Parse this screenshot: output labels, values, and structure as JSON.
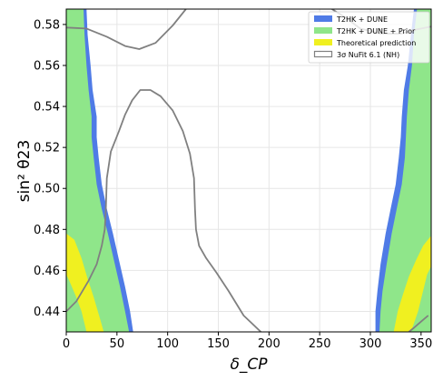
{
  "chart_data": {
    "type": "area",
    "xlabel": "δ_CP",
    "ylabel": "sin² θ23",
    "xlim": [
      0,
      360
    ],
    "ylim": [
      0.43,
      0.5875
    ],
    "xticks": [
      0,
      50,
      100,
      150,
      200,
      250,
      300,
      350
    ],
    "yticks": [
      0.44,
      0.46,
      0.48,
      0.5,
      0.52,
      0.54,
      0.56,
      0.58
    ],
    "grid": true,
    "legend_position": "top-right",
    "legend": [
      {
        "label": "T2HK + DUNE",
        "color": "#4f7be6",
        "kind": "fill"
      },
      {
        "label": "T2HK + DUNE + Prior",
        "color": "#8fe68a",
        "kind": "fill"
      },
      {
        "label": "Theoretical prediction",
        "color": "#f0f020",
        "kind": "fill"
      },
      {
        "label": "3σ NuFit 6.1 (NH)",
        "color": "#808080",
        "kind": "outline"
      }
    ],
    "series": [
      {
        "name": "T2HK + DUNE",
        "color": "#4f7be6",
        "regions": [
          [
            [
              0,
              0.43
            ],
            [
              66,
              0.43
            ],
            [
              63,
              0.44
            ],
            [
              58,
              0.452
            ],
            [
              52,
              0.465
            ],
            [
              46,
              0.478
            ],
            [
              40,
              0.49
            ],
            [
              35,
              0.502
            ],
            [
              32,
              0.515
            ],
            [
              30,
              0.525
            ],
            [
              30,
              0.535
            ],
            [
              26,
              0.548
            ],
            [
              24,
              0.56
            ],
            [
              21,
              0.575
            ],
            [
              20,
              0.5875
            ],
            [
              0,
              0.5875
            ]
          ],
          [
            [
              305,
              0.43
            ],
            [
              360,
              0.43
            ],
            [
              360,
              0.5875
            ],
            [
              343,
              0.5875
            ],
            [
              340,
              0.575
            ],
            [
              337,
              0.56
            ],
            [
              333,
              0.548
            ],
            [
              331,
              0.535
            ],
            [
              330,
              0.525
            ],
            [
              328,
              0.515
            ],
            [
              325,
              0.502
            ],
            [
              320,
              0.49
            ],
            [
              315,
              0.478
            ],
            [
              310,
              0.463
            ],
            [
              307,
              0.45
            ],
            [
              305,
              0.44
            ]
          ]
        ]
      },
      {
        "name": "T2HK + DUNE + Prior",
        "color": "#8fe68a",
        "regions": [
          [
            [
              0,
              0.43
            ],
            [
              62,
              0.43
            ],
            [
              58,
              0.44
            ],
            [
              53,
              0.452
            ],
            [
              47,
              0.465
            ],
            [
              41,
              0.478
            ],
            [
              35,
              0.49
            ],
            [
              30,
              0.502
            ],
            [
              27,
              0.515
            ],
            [
              25,
              0.525
            ],
            [
              25,
              0.535
            ],
            [
              22,
              0.548
            ],
            [
              20,
              0.56
            ],
            [
              18,
              0.575
            ],
            [
              17,
              0.5875
            ],
            [
              0,
              0.5875
            ]
          ],
          [
            [
              309,
              0.43
            ],
            [
              360,
              0.43
            ],
            [
              360,
              0.5875
            ],
            [
              346,
              0.5875
            ],
            [
              343,
              0.575
            ],
            [
              341,
              0.56
            ],
            [
              338,
              0.548
            ],
            [
              336,
              0.535
            ],
            [
              335,
              0.525
            ],
            [
              334,
              0.515
            ],
            [
              331,
              0.502
            ],
            [
              326,
              0.49
            ],
            [
              321,
              0.478
            ],
            [
              316,
              0.463
            ],
            [
              312,
              0.45
            ],
            [
              310,
              0.44
            ]
          ]
        ]
      },
      {
        "name": "Theoretical prediction",
        "color": "#f0f020",
        "regions": [
          [
            [
              0,
              0.478
            ],
            [
              8,
              0.475
            ],
            [
              15,
              0.466
            ],
            [
              21,
              0.456
            ],
            [
              27,
              0.447
            ],
            [
              33,
              0.437
            ],
            [
              37,
              0.43
            ],
            [
              20,
              0.43
            ],
            [
              15,
              0.44
            ],
            [
              9,
              0.448
            ],
            [
              3,
              0.455
            ],
            [
              0,
              0.458
            ]
          ],
          [
            [
              323,
              0.43
            ],
            [
              340,
              0.43
            ],
            [
              347,
              0.44
            ],
            [
              352,
              0.45
            ],
            [
              356,
              0.458
            ],
            [
              360,
              0.462
            ],
            [
              360,
              0.477
            ],
            [
              352,
              0.472
            ],
            [
              345,
              0.465
            ],
            [
              338,
              0.457
            ],
            [
              332,
              0.448
            ],
            [
              327,
              0.44
            ]
          ]
        ]
      },
      {
        "name": "3σ NuFit 6.1 (NH)",
        "color": "#808080",
        "contours": [
          [
            [
              0,
              0.5785
            ],
            [
              20,
              0.578
            ],
            [
              40,
              0.574
            ],
            [
              58,
              0.5695
            ],
            [
              72,
              0.568
            ],
            [
              88,
              0.571
            ],
            [
              105,
              0.5795
            ],
            [
              118,
              0.5875
            ]
          ],
          [
            [
              262,
              0.5875
            ],
            [
              275,
              0.5835
            ],
            [
              290,
              0.578
            ],
            [
              310,
              0.5755
            ],
            [
              330,
              0.5755
            ],
            [
              345,
              0.5775
            ],
            [
              360,
              0.579
            ]
          ],
          [
            [
              0,
              0.44
            ],
            [
              10,
              0.445
            ],
            [
              22,
              0.455
            ],
            [
              30,
              0.463
            ],
            [
              35,
              0.472
            ],
            [
              38,
              0.48
            ],
            [
              39,
              0.49
            ],
            [
              40,
              0.505
            ],
            [
              44,
              0.518
            ],
            [
              52,
              0.528
            ],
            [
              58,
              0.536
            ],
            [
              65,
              0.543
            ],
            [
              73,
              0.548
            ],
            [
              83,
              0.548
            ],
            [
              93,
              0.545
            ],
            [
              105,
              0.538
            ],
            [
              115,
              0.528
            ],
            [
              122,
              0.517
            ],
            [
              126,
              0.505
            ],
            [
              127,
              0.49
            ],
            [
              128,
              0.48
            ],
            [
              131,
              0.472
            ],
            [
              138,
              0.466
            ],
            [
              148,
              0.459
            ],
            [
              160,
              0.45
            ],
            [
              175,
              0.438
            ],
            [
              192,
              0.43
            ]
          ],
          [
            [
              338,
              0.43
            ],
            [
              343,
              0.432
            ],
            [
              350,
              0.435
            ],
            [
              357,
              0.438
            ]
          ]
        ]
      }
    ]
  }
}
